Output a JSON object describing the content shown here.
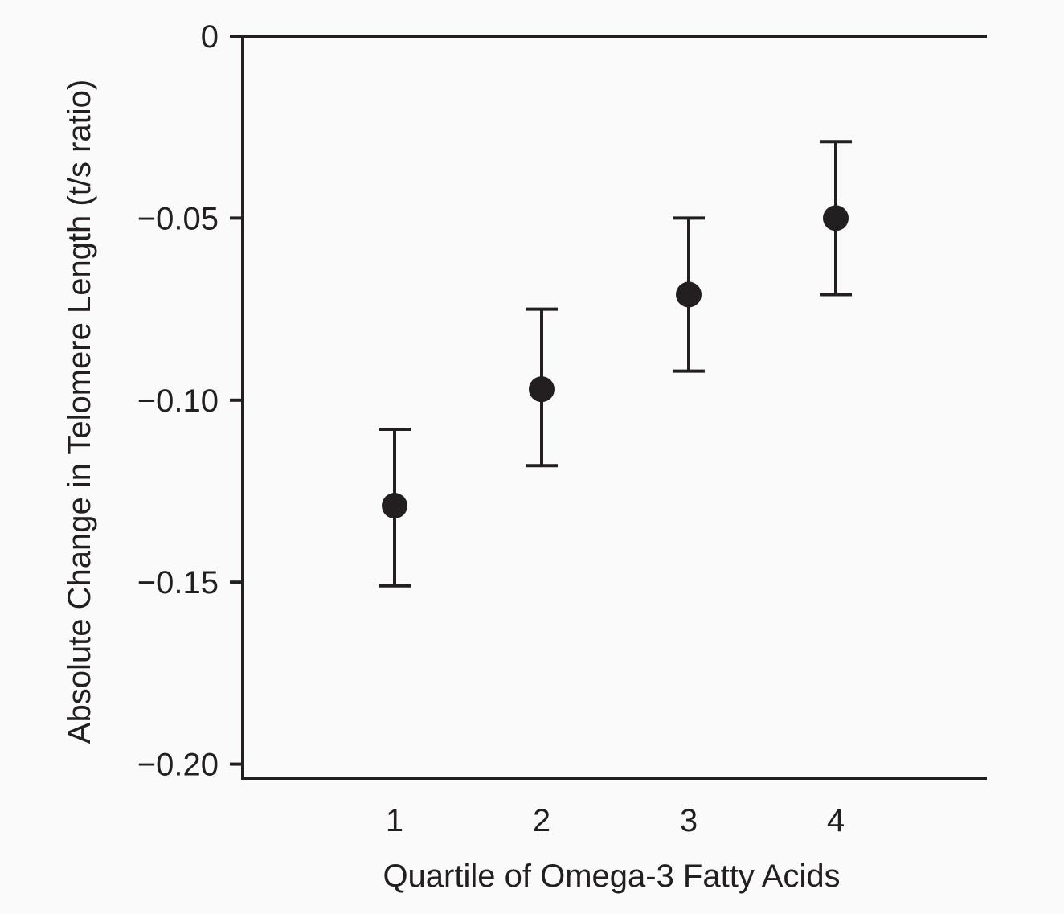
{
  "chart_data": {
    "type": "scatter",
    "title": "",
    "xlabel": "Quartile of Omega-3 Fatty Acids",
    "ylabel": "Absolute Change in Telomere Length (t/s ratio)",
    "x": [
      1,
      2,
      3,
      4
    ],
    "x_tick_labels": [
      "1",
      "2",
      "3",
      "4"
    ],
    "y_ticks": [
      0,
      -0.05,
      -0.1,
      -0.15,
      -0.2
    ],
    "y_tick_labels": [
      "0",
      "−0.05",
      "−0.10",
      "−0.15",
      "−0.20"
    ],
    "xlim": [
      0,
      5
    ],
    "ylim": [
      -0.204,
      0
    ],
    "grid": false,
    "legend": "none",
    "series": [
      {
        "values": [
          -0.129,
          -0.097,
          -0.071,
          -0.05
        ],
        "error_upper": [
          -0.108,
          -0.075,
          -0.05,
          -0.029
        ],
        "error_lower": [
          -0.151,
          -0.118,
          -0.092,
          -0.071
        ]
      }
    ],
    "colors": {
      "marker": "#231f20",
      "axis": "#231f20",
      "background": "#fafafa"
    }
  }
}
